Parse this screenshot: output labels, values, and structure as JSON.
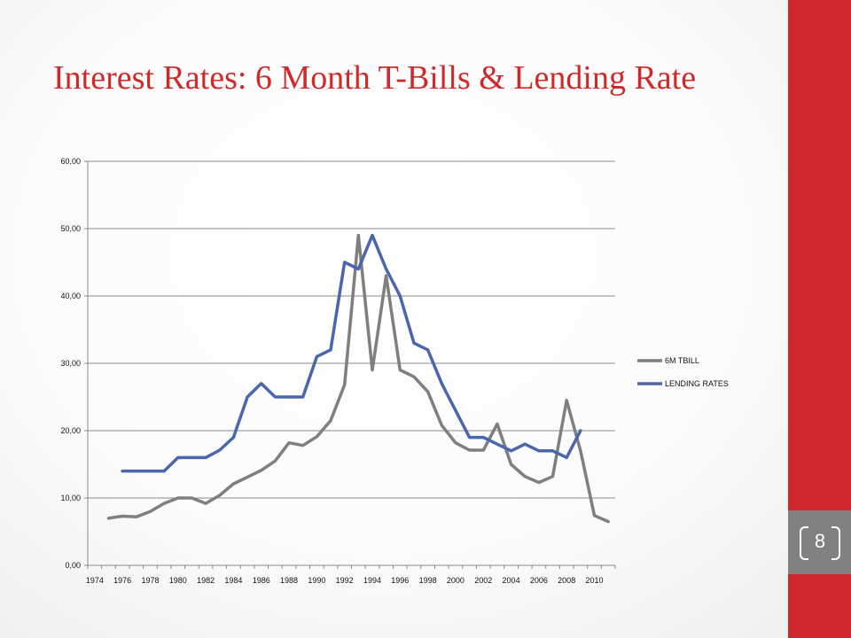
{
  "slide": {
    "title": "Interest Rates: 6 Month T-Bills & Lending Rate",
    "page_number": "8",
    "accent_color": "#d0272c",
    "box_color": "#818181",
    "title_color": "#cf2a2a"
  },
  "chart_data": {
    "type": "line",
    "title": "",
    "xlabel": "",
    "ylabel": "",
    "ylim": [
      0,
      60
    ],
    "yticks": [
      0,
      10,
      20,
      30,
      40,
      50,
      60
    ],
    "ytick_labels": [
      "0,00",
      "10,00",
      "20,00",
      "30,00",
      "40,00",
      "50,00",
      "60,00"
    ],
    "x": [
      1974,
      1975,
      1976,
      1977,
      1978,
      1979,
      1980,
      1981,
      1982,
      1983,
      1984,
      1985,
      1986,
      1987,
      1988,
      1989,
      1990,
      1991,
      1992,
      1993,
      1994,
      1995,
      1996,
      1997,
      1998,
      1999,
      2000,
      2001,
      2002,
      2003,
      2004,
      2005,
      2006,
      2007,
      2008,
      2009,
      2010,
      2011
    ],
    "xtick_labels": [
      "1974",
      "1976",
      "1978",
      "1980",
      "1982",
      "1984",
      "1986",
      "1988",
      "1990",
      "1992",
      "1994",
      "1996",
      "1998",
      "2000",
      "2002",
      "2004",
      "2006",
      "2008",
      "2010"
    ],
    "grid": "horizontal",
    "legend": "right",
    "series": [
      {
        "name": "6M TBILL",
        "color": "#7f7f7f",
        "values": [
          null,
          7.0,
          7.3,
          7.2,
          8.0,
          9.2,
          10.0,
          10.0,
          9.2,
          10.4,
          12.1,
          13.1,
          14.1,
          15.5,
          18.2,
          17.8,
          19.1,
          21.5,
          26.8,
          49.0,
          29.0,
          43.0,
          29.0,
          28.0,
          25.8,
          20.8,
          18.2,
          17.1,
          17.1,
          21.0,
          15.0,
          13.2,
          12.3,
          13.2,
          24.5,
          17.0,
          7.4,
          6.5
        ]
      },
      {
        "name": "LENDING RATES",
        "color": "#4a66ad",
        "values": [
          null,
          null,
          14.0,
          14.0,
          14.0,
          14.0,
          16.0,
          16.0,
          16.0,
          17.1,
          19.0,
          25.0,
          27.0,
          25.0,
          25.0,
          25.0,
          31.0,
          32.0,
          45.0,
          44.0,
          49.0,
          44.0,
          40.0,
          33.0,
          32.0,
          27.0,
          23.0,
          19.0,
          19.0,
          18.0,
          17.0,
          18.0,
          17.0,
          17.0,
          16.0,
          20.0,
          null,
          null
        ]
      }
    ]
  }
}
